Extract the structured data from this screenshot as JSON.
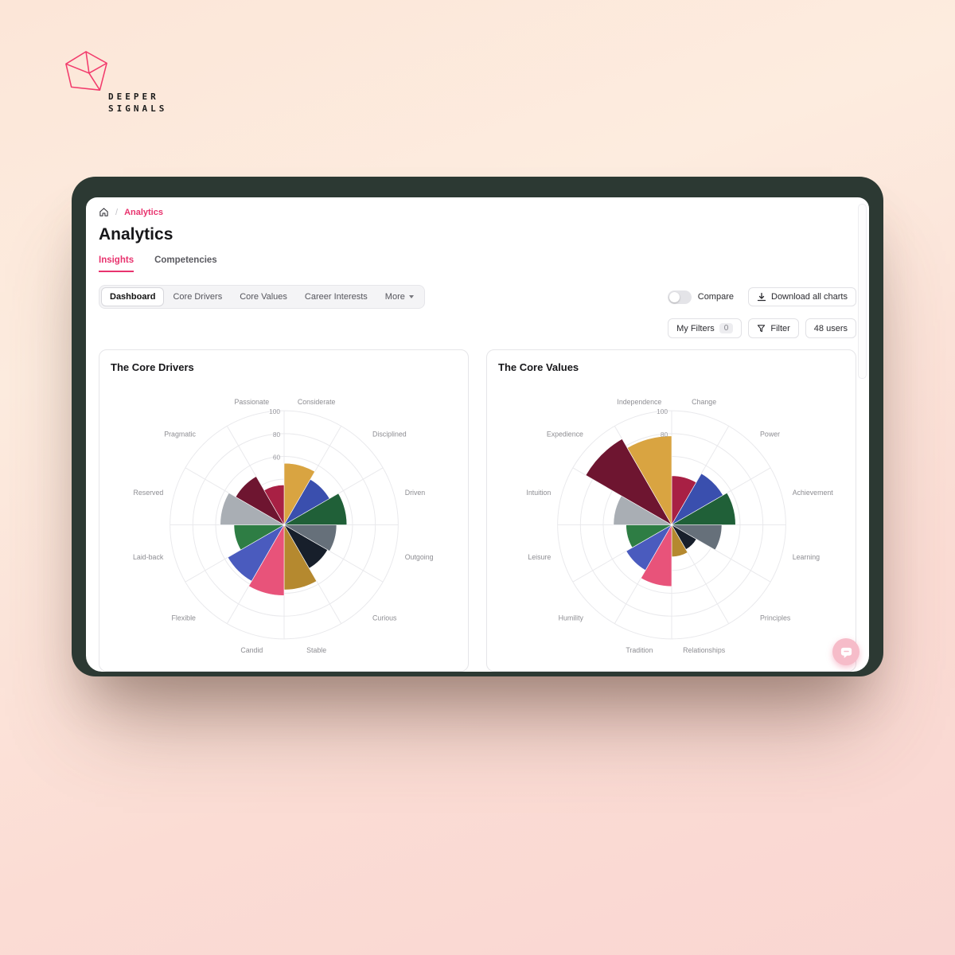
{
  "brand": {
    "line1": "DEEPER",
    "line2": "SIGNALS"
  },
  "breadcrumb": {
    "separator": "/",
    "current": "Analytics"
  },
  "page": {
    "title": "Analytics"
  },
  "tabs": [
    {
      "label": "Insights",
      "active": true
    },
    {
      "label": "Competencies",
      "active": false
    }
  ],
  "toolbar": {
    "segments": [
      "Dashboard",
      "Core Drivers",
      "Core Values",
      "Career Interests"
    ],
    "active_segment": "Dashboard",
    "more_label": "More",
    "compare_label": "Compare",
    "compare_on": false,
    "download_label": "Download all charts"
  },
  "filters": {
    "my_filters_label": "My Filters",
    "my_filters_count": "0",
    "filter_label": "Filter",
    "users_label": "48 users"
  },
  "icons": [
    "home-icon",
    "chevron-down-icon",
    "download-icon",
    "funnel-icon",
    "chat-icon"
  ],
  "colors": {
    "accent_pink": "#E8336E",
    "frame_dark": "#2C3933",
    "background_top": "#FCE6D8",
    "background_bottom": "#F9D6D2",
    "fab_pink": "#F6BCC9"
  },
  "chart_data": [
    {
      "type": "rose",
      "title": "The Core Drivers",
      "categories": [
        "Considerate",
        "Disciplined",
        "Driven",
        "Outgoing",
        "Curious",
        "Stable",
        "Candid",
        "Flexible",
        "Laid-back",
        "Reserved",
        "Pragmatic",
        "Passionate"
      ],
      "values": [
        54,
        46,
        55,
        46,
        44,
        57,
        62,
        57,
        44,
        56,
        49,
        35
      ],
      "colors": [
        "#D9A441",
        "#3A4FAE",
        "#206038",
        "#66707A",
        "#171F2B",
        "#B5892F",
        "#E8537A",
        "#4A5BBE",
        "#2E7D44",
        "#A9AEB4",
        "#6E1530",
        "#A82044"
      ],
      "rings": [
        20,
        40,
        60,
        80,
        100
      ],
      "ring_labels": [
        "100",
        "80",
        "60"
      ],
      "rmax": 100,
      "start_angle_deg": 0,
      "legend": "none",
      "grid": true
    },
    {
      "type": "rose",
      "title": "The Core Values",
      "categories": [
        "Change",
        "Power",
        "Achievement",
        "Learning",
        "Principles",
        "Relationships",
        "Tradition",
        "Humility",
        "Leisure",
        "Intuition",
        "Expedience",
        "Independence"
      ],
      "values": [
        43,
        52,
        56,
        44,
        25,
        28,
        54,
        46,
        40,
        51,
        87,
        78
      ],
      "colors": [
        "#A82044",
        "#3A4FAE",
        "#206038",
        "#66707A",
        "#171F2B",
        "#B5892F",
        "#E8537A",
        "#4A5BBE",
        "#2E7D44",
        "#A9AEB4",
        "#6E1530",
        "#D9A441"
      ],
      "rings": [
        20,
        40,
        60,
        80,
        100
      ],
      "ring_labels": [
        "100",
        "80"
      ],
      "rmax": 100,
      "start_angle_deg": 0,
      "legend": "none",
      "grid": true
    }
  ]
}
